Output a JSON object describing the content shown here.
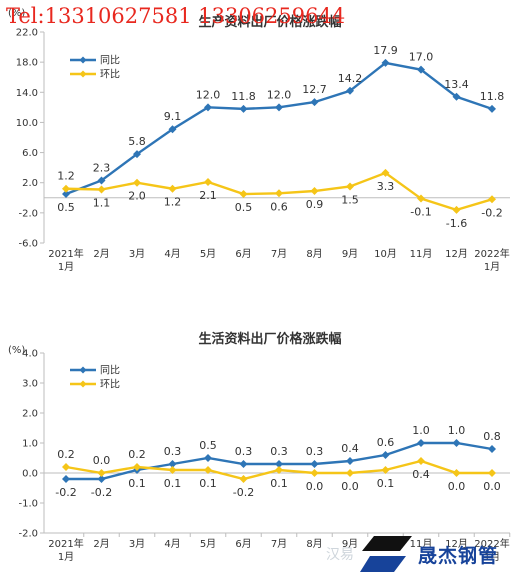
{
  "watermark": "Tel:13310627581 13306259644",
  "logo": {
    "text": "晟杰钢管",
    "sub": "汉易"
  },
  "colors": {
    "yoy": "#2e75b6",
    "mom": "#f5c518",
    "axis": "#bdbdbd"
  },
  "chart_data": [
    {
      "type": "line",
      "title": "生产资料出厂价格涨跌幅",
      "unit": "(%)",
      "categories": [
        "2021年\n1月",
        "2月",
        "3月",
        "4月",
        "5月",
        "6月",
        "7月",
        "8月",
        "9月",
        "10月",
        "11月",
        "12月",
        "2022年\n1月"
      ],
      "ylim": [
        -6.0,
        22.0
      ],
      "yticks": [
        22.0,
        18.0,
        14.0,
        10.0,
        6.0,
        2.0,
        -2.0,
        -6.0
      ],
      "series": [
        {
          "name": "同比",
          "values": [
            0.5,
            2.3,
            5.8,
            9.1,
            12.0,
            11.8,
            12.0,
            12.7,
            14.2,
            17.9,
            17.0,
            13.4,
            11.8
          ]
        },
        {
          "name": "环比",
          "values": [
            1.2,
            1.1,
            2.0,
            1.2,
            2.1,
            0.5,
            0.6,
            0.9,
            1.5,
            3.3,
            -0.1,
            -1.6,
            -0.2
          ]
        }
      ]
    },
    {
      "type": "line",
      "title": "生活资料出厂价格涨跌幅",
      "unit": "(%)",
      "categories": [
        "2021年\n1月",
        "2月",
        "3月",
        "4月",
        "5月",
        "6月",
        "7月",
        "8月",
        "9月",
        "10月",
        "11月",
        "12月",
        "2022年\n1月"
      ],
      "ylim": [
        -2.0,
        4.0
      ],
      "yticks": [
        4.0,
        3.0,
        2.0,
        1.0,
        0.0,
        -1.0,
        -2.0
      ],
      "series": [
        {
          "name": "同比",
          "values": [
            -0.2,
            -0.2,
            0.1,
            0.3,
            0.5,
            0.3,
            0.3,
            0.3,
            0.4,
            0.6,
            1.0,
            1.0,
            0.8
          ]
        },
        {
          "name": "环比",
          "values": [
            0.2,
            0.0,
            0.2,
            0.1,
            0.1,
            -0.2,
            0.1,
            0.0,
            0.0,
            0.1,
            0.4,
            0.0,
            0.0
          ]
        }
      ]
    }
  ]
}
